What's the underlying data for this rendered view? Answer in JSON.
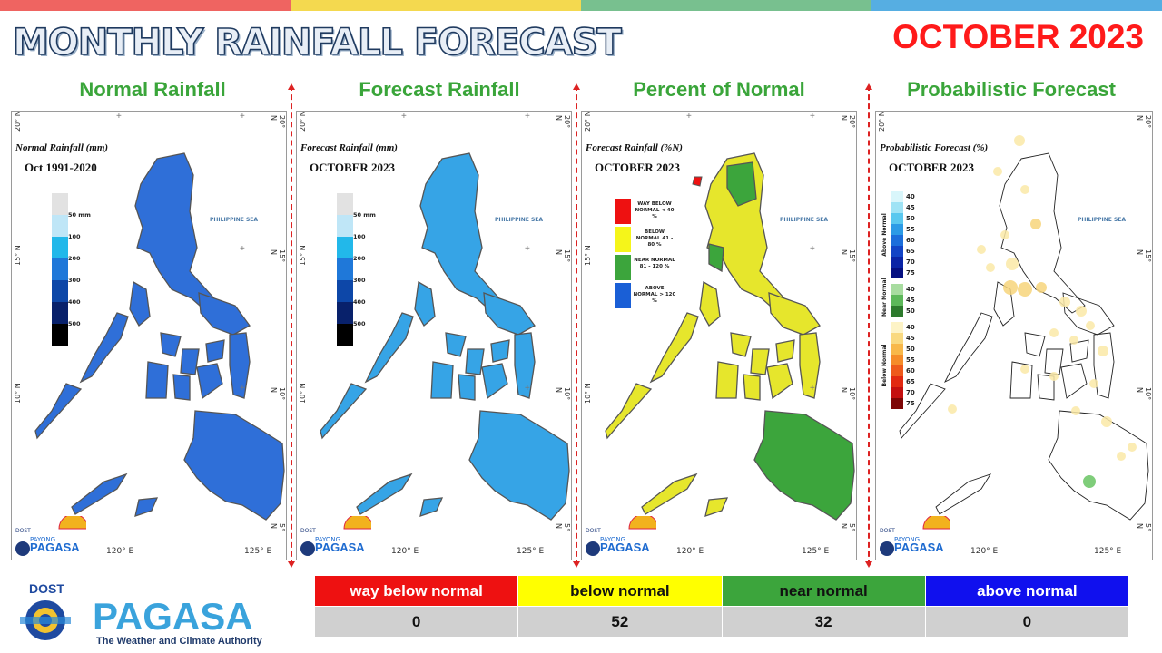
{
  "header": {
    "title": "MONTHLY RAINFALL FORECAST",
    "date": "OCTOBER 2023",
    "stripe_colors": [
      "#ef6461",
      "#f4d94f",
      "#78c08f",
      "#56aee2"
    ]
  },
  "panels": [
    {
      "heading": "Normal Rainfall",
      "map_title": "Normal Rainfall (mm)",
      "map_subtitle": "Oct 1991-2020",
      "fill_color": "#2f6fd8",
      "legend": [
        {
          "label": "50 mm",
          "color": "#e2e2e2"
        },
        {
          "label": "100",
          "color": "#bfe6f7"
        },
        {
          "label": "200",
          "color": "#22b8ea"
        },
        {
          "label": "300",
          "color": "#1f78d9"
        },
        {
          "label": "400",
          "color": "#0d47a8"
        },
        {
          "label": "500",
          "color": "#08216b"
        },
        {
          "label": "",
          "color": "#000000"
        }
      ]
    },
    {
      "heading": "Forecast Rainfall",
      "map_title": "Forecast Rainfall (mm)",
      "map_subtitle": "OCTOBER 2023",
      "fill_color": "#36a4e6",
      "legend": [
        {
          "label": "50 mm",
          "color": "#e2e2e2"
        },
        {
          "label": "100",
          "color": "#bfe6f7"
        },
        {
          "label": "200",
          "color": "#22b8ea"
        },
        {
          "label": "300",
          "color": "#1f78d9"
        },
        {
          "label": "400",
          "color": "#0d47a8"
        },
        {
          "label": "500",
          "color": "#08216b"
        },
        {
          "label": "",
          "color": "#000000"
        }
      ]
    },
    {
      "heading": "Percent of Normal",
      "map_title": "Forecast Rainfall (%N)",
      "map_subtitle": "OCTOBER 2023",
      "fill_color": "#e6e62c",
      "legend": [
        {
          "label": "WAY BELOW NORMAL < 40 %",
          "color": "#ee1111"
        },
        {
          "label": "BELOW NORMAL 41 - 80 %",
          "color": "#f5f51a"
        },
        {
          "label": "NEAR NORMAL 81 - 120 %",
          "color": "#3ca53c"
        },
        {
          "label": "ABOVE NORMAL > 120 %",
          "color": "#1a5fd6"
        }
      ]
    },
    {
      "heading": "Probabilistic Forecast",
      "map_title": "Probabilistic Forecast (%)",
      "map_subtitle": "OCTOBER 2023",
      "fill_color": "#ffffff",
      "legend_groups": [
        {
          "name": "Above Normal",
          "levels": [
            "40",
            "45",
            "50",
            "55",
            "60",
            "65",
            "70",
            "75"
          ],
          "colors": [
            "#d9f6fb",
            "#9fe3f5",
            "#5ac8ef",
            "#2c9be6",
            "#1c6edb",
            "#1244c6",
            "#0a24a6",
            "#050f80"
          ]
        },
        {
          "name": "Near Normal",
          "levels": [
            "40",
            "45",
            "50"
          ],
          "colors": [
            "#a8dca0",
            "#5db85a",
            "#2d7a2d"
          ]
        },
        {
          "name": "Below Normal",
          "levels": [
            "40",
            "45",
            "50",
            "55",
            "60",
            "65",
            "70",
            "75"
          ],
          "colors": [
            "#fdf3c6",
            "#f9d980",
            "#f8b84a",
            "#f58c2a",
            "#ee5a1c",
            "#e22a12",
            "#c41010",
            "#7e0606"
          ]
        }
      ]
    }
  ],
  "map_labels": {
    "sea": "PHILIPPINE SEA",
    "lat_20": "20° N",
    "lat_15": "15° N",
    "lat_10": "10° N",
    "lat_5": "5° N",
    "lon_120": "120° E",
    "lon_125": "125° E"
  },
  "logo": {
    "dost": "DOST",
    "name": "PAGASA",
    "tagline": "The Weather and Climate Authority",
    "payong": "PAYONG"
  },
  "summary_table": {
    "categories": [
      {
        "label": "way below normal",
        "color": "#ee1111",
        "text_color": "#ffffff"
      },
      {
        "label": "below normal",
        "color": "#ffff00",
        "text_color": "#111111"
      },
      {
        "label": "near normal",
        "color": "#3ca53c",
        "text_color": "#111111"
      },
      {
        "label": "above normal",
        "color": "#1010ee",
        "text_color": "#ffffff"
      }
    ],
    "values": [
      "0",
      "52",
      "32",
      "0"
    ]
  }
}
